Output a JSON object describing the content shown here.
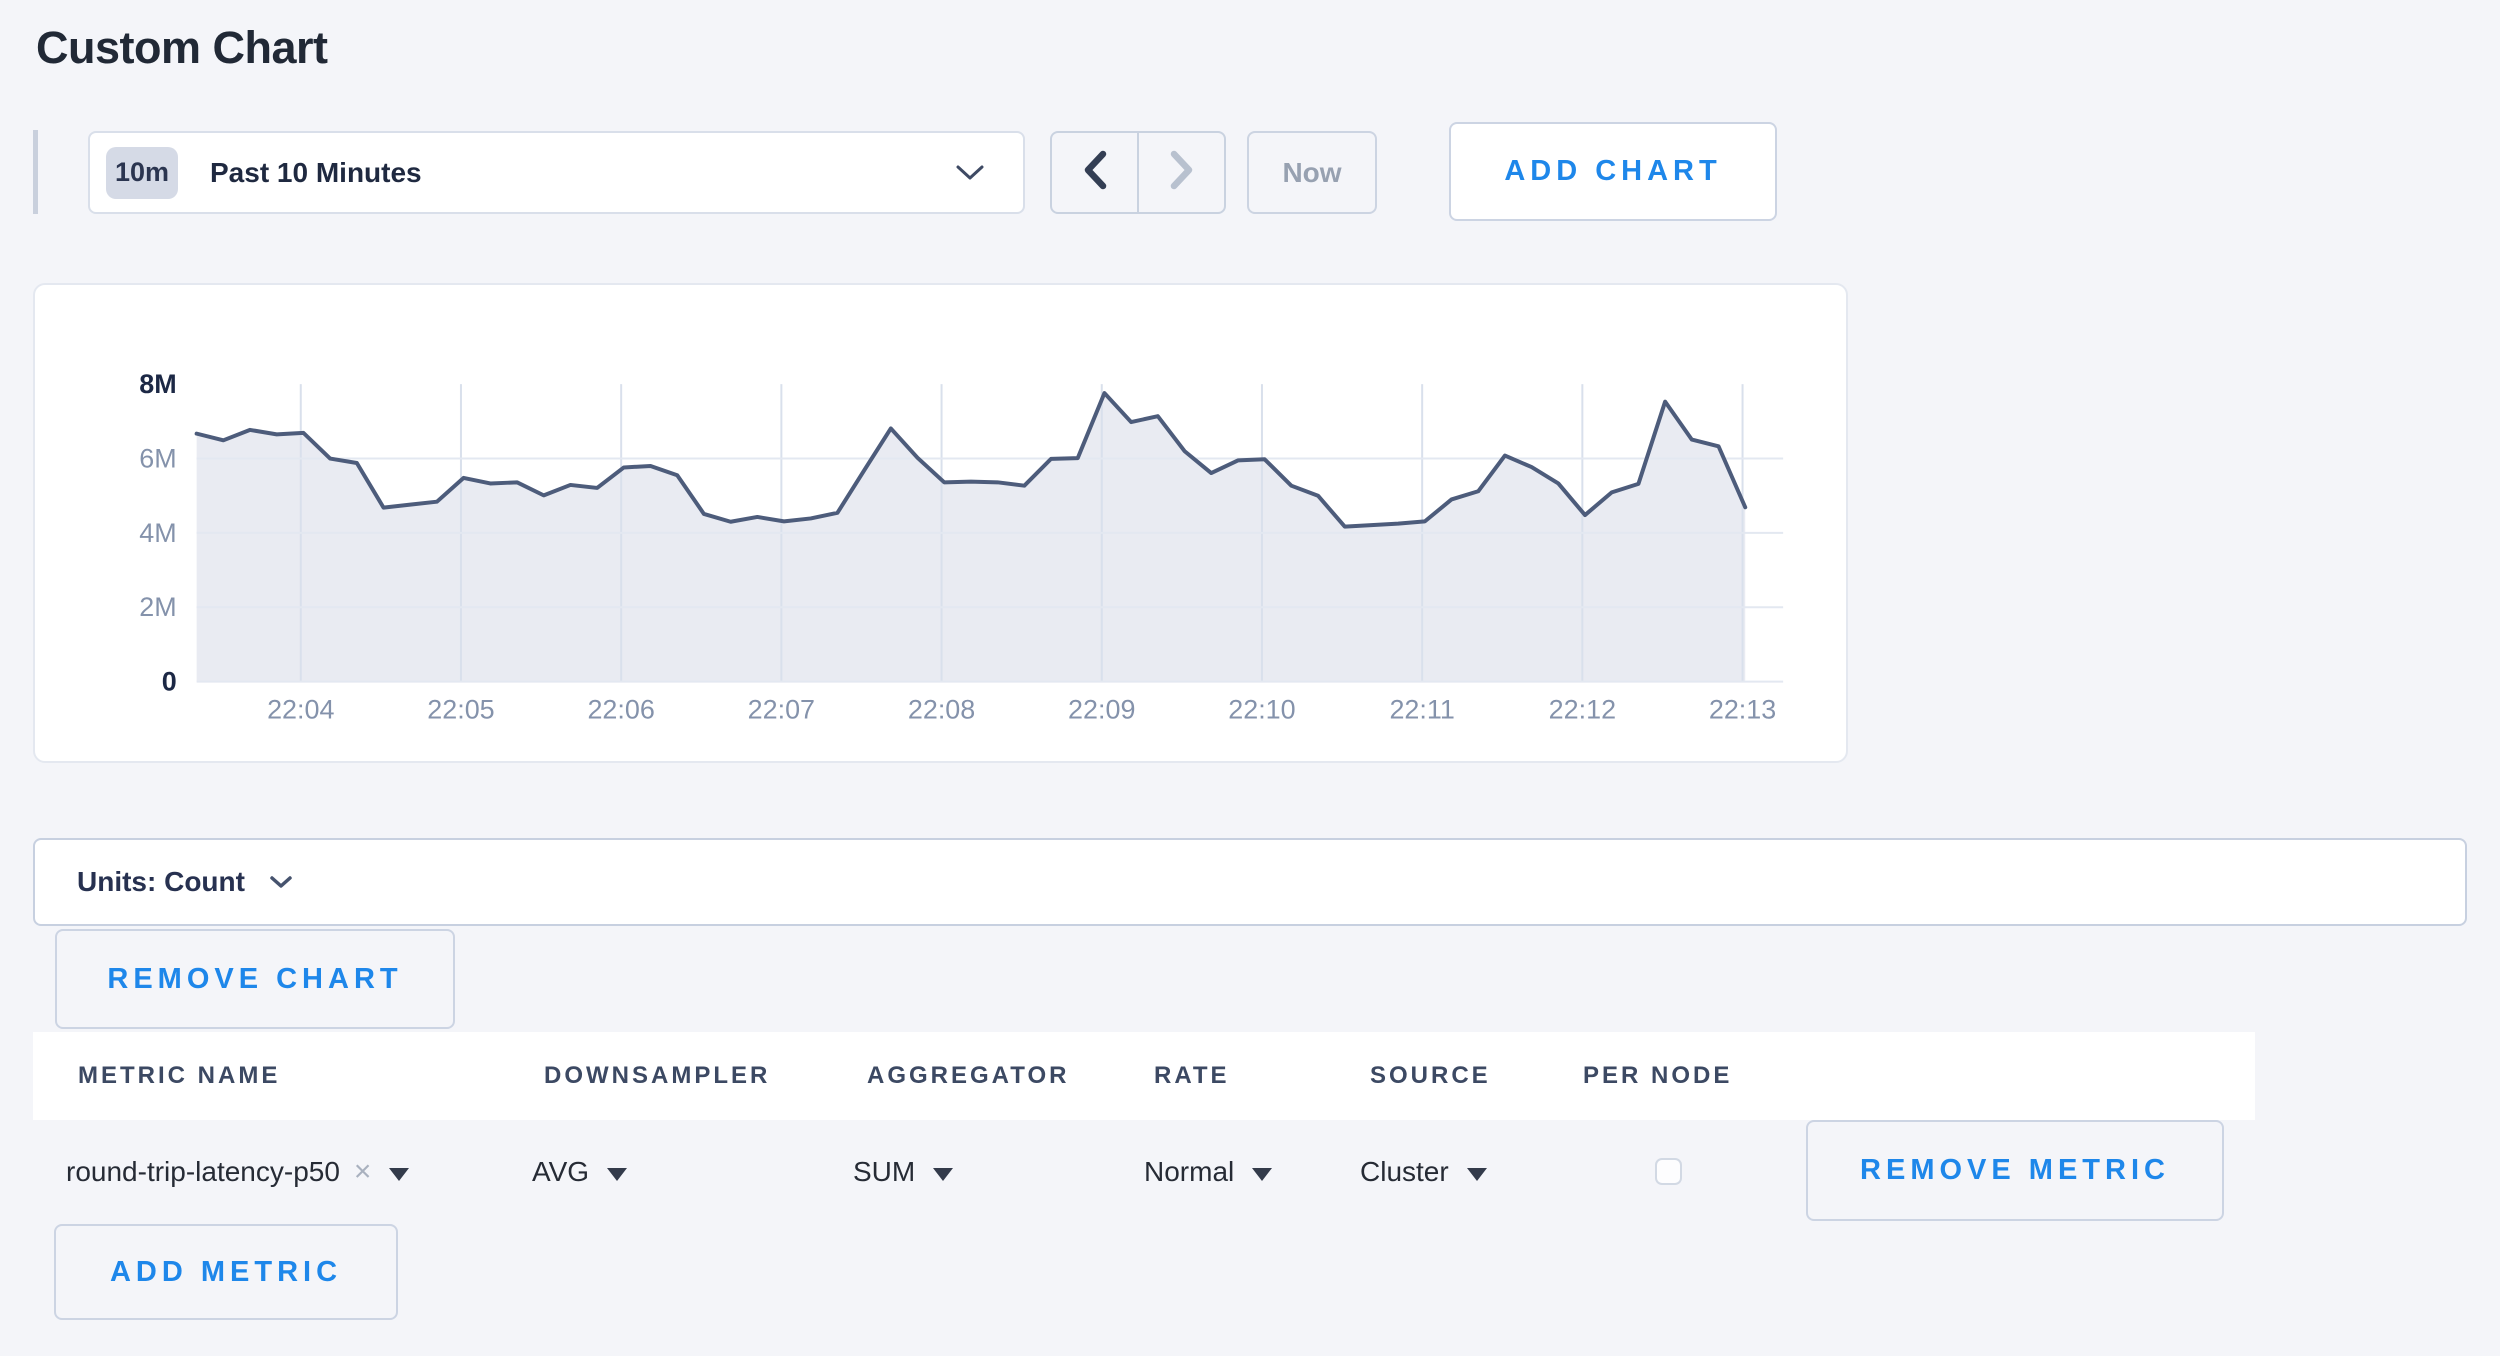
{
  "page": {
    "title": "Custom Chart"
  },
  "toolbar": {
    "time_range": {
      "badge": "10m",
      "label": "Past 10 Minutes"
    },
    "now_label": "Now",
    "add_chart_label": "ADD CHART"
  },
  "chart_data": {
    "type": "area",
    "title": "",
    "ylabel": "Count",
    "legend": "none",
    "grid": true,
    "ylim_millions": [
      0,
      8
    ],
    "y_ticks": [
      {
        "label": "8M",
        "value_millions": 8,
        "emphasis": true,
        "grid": false
      },
      {
        "label": "6M",
        "value_millions": 6,
        "emphasis": false,
        "grid": true
      },
      {
        "label": "4M",
        "value_millions": 4,
        "emphasis": false,
        "grid": true
      },
      {
        "label": "2M",
        "value_millions": 2,
        "emphasis": false,
        "grid": true
      },
      {
        "label": "0",
        "value_millions": 0,
        "emphasis": true,
        "grid": true
      }
    ],
    "x_start_s": 201,
    "x_end_s": 781,
    "sample_interval_s": 10,
    "x_ticks": [
      {
        "label": "22:04",
        "time_s": 240
      },
      {
        "label": "22:05",
        "time_s": 300
      },
      {
        "label": "22:06",
        "time_s": 360
      },
      {
        "label": "22:07",
        "time_s": 420
      },
      {
        "label": "22:08",
        "time_s": 480
      },
      {
        "label": "22:09",
        "time_s": 540
      },
      {
        "label": "22:10",
        "time_s": 600
      },
      {
        "label": "22:11",
        "time_s": 660
      },
      {
        "label": "22:12",
        "time_s": 720
      },
      {
        "label": "22:13",
        "time_s": 780
      }
    ],
    "series": [
      {
        "name": "round-trip-latency-p50",
        "values_millions": [
          6.67,
          6.49,
          6.77,
          6.65,
          6.69,
          6.0,
          5.88,
          4.68,
          4.76,
          4.84,
          5.48,
          5.33,
          5.36,
          5.01,
          5.29,
          5.21,
          5.76,
          5.8,
          5.55,
          4.51,
          4.3,
          4.43,
          4.31,
          4.39,
          4.54,
          5.68,
          6.81,
          6.02,
          5.36,
          5.38,
          5.36,
          5.27,
          5.99,
          6.01,
          7.76,
          6.98,
          7.14,
          6.2,
          5.61,
          5.95,
          5.98,
          5.27,
          5.0,
          4.17,
          4.21,
          4.25,
          4.31,
          4.9,
          5.12,
          6.08,
          5.77,
          5.33,
          4.48,
          5.09,
          5.32,
          7.53,
          6.51,
          6.33,
          4.69
        ]
      }
    ],
    "colors": {
      "line": "#4d5c7b",
      "fill": "#e9ebf2",
      "grid_h": "#e3e8f1",
      "grid_v": "#d9e0ec",
      "axis_dark": "#1c2845",
      "axis_gray": "#8492ab"
    }
  },
  "units_bar": {
    "label": "Units: Count"
  },
  "chart_actions": {
    "remove_chart_label": "REMOVE CHART"
  },
  "metrics_table": {
    "headers": [
      "METRIC NAME",
      "DOWNSAMPLER",
      "AGGREGATOR",
      "RATE",
      "SOURCE",
      "PER NODE"
    ],
    "rows": [
      {
        "metric_name": "round-trip-latency-p50",
        "downsampler": "AVG",
        "aggregator": "SUM",
        "rate": "Normal",
        "source": "Cluster",
        "per_node_checked": false,
        "remove_label": "REMOVE METRIC"
      }
    ],
    "add_metric_label": "ADD METRIC"
  },
  "icons": {
    "remove_tag": "×"
  },
  "colors": {
    "accent_blue": "#1e87ea",
    "page_bg": "#f4f5f9"
  }
}
